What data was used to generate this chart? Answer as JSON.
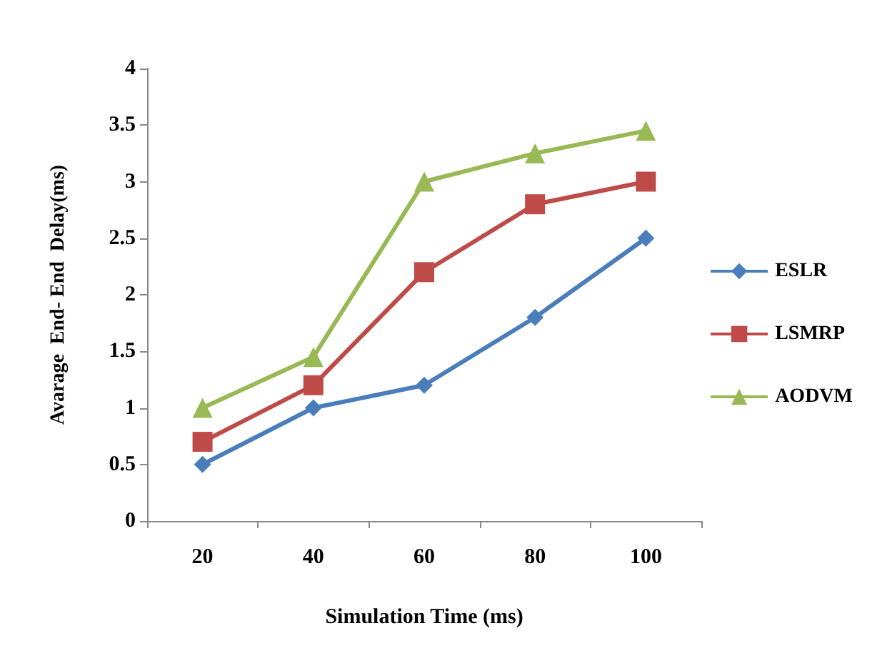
{
  "chart_data": {
    "type": "line",
    "xlabel": "Simulation Time (ms)",
    "ylabel": "Avarage  End- End  Delay(ms)",
    "categories": [
      "20",
      "40",
      "60",
      "80",
      "100"
    ],
    "series": [
      {
        "name": "ESLR",
        "color": "#4a7ebb",
        "marker": "diamond",
        "values": [
          0.5,
          1.0,
          1.2,
          1.8,
          2.5
        ]
      },
      {
        "name": "LSMRP",
        "color": "#be4b48",
        "marker": "square",
        "values": [
          0.7,
          1.2,
          2.2,
          2.8,
          3.0
        ]
      },
      {
        "name": "AODVM",
        "color": "#98b954",
        "marker": "triangle",
        "values": [
          1.0,
          1.45,
          3.0,
          3.25,
          3.45
        ]
      }
    ],
    "ylim": [
      0,
      4
    ],
    "yticks": [
      0,
      0.5,
      1,
      1.5,
      2,
      2.5,
      3,
      3.5,
      4
    ],
    "grid": false,
    "legend": "right",
    "line_style": "solid"
  }
}
